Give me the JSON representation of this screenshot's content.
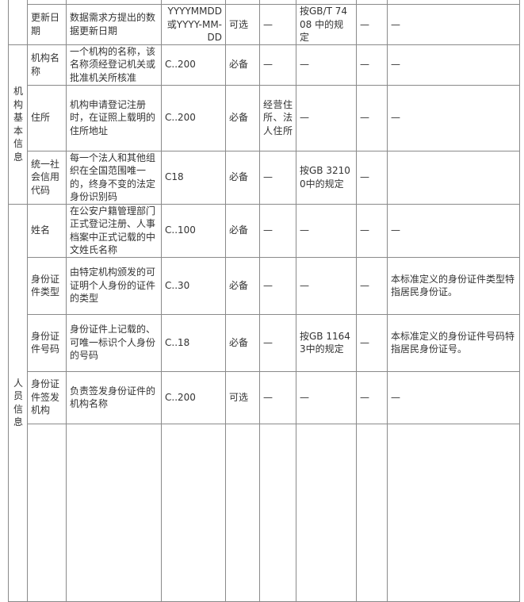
{
  "groups": {
    "org": "机构基本信息",
    "person": "人员信息"
  },
  "rows": [
    {
      "name": "更新日期",
      "desc": "数据需求方提出的数据更新日期",
      "format": "YYYYMMDD或YYYY-MM-DD",
      "req": "可选",
      "c5": "—",
      "c6": "按GB/T 7408 中的规定",
      "c7": "—",
      "c8": "—"
    },
    {
      "name": "机构名称",
      "desc": "一个机构的名称，该名称须经登记机关或批准机关所核准",
      "format": "C..200",
      "req": "必备",
      "c5": "—",
      "c6": "—",
      "c7": "—",
      "c8": "—"
    },
    {
      "name": "住所",
      "desc": "机构申请登记注册时，在证照上载明的住所地址",
      "format": "C..200",
      "req": "必备",
      "c5": "经营住所、法人住所",
      "c6": "—",
      "c7": "—",
      "c8": "—"
    },
    {
      "name": "统一社会信用代码",
      "desc": "每一个法人和其他组织在全国范围唯一的，终身不变的法定身份识别码",
      "format": "C18",
      "req": "必备",
      "c5": "—",
      "c6": "按GB 32100中的规定",
      "c7": "—",
      "c8": ""
    },
    {
      "name": "姓名",
      "desc": "在公安户籍管理部门正式登记注册、人事档案中正式记载的中文姓氏名称",
      "format": "C..100",
      "req": "必备",
      "c5": "—",
      "c6": "—",
      "c7": "—",
      "c8": "—"
    },
    {
      "name": "身份证件类型",
      "desc": "由特定机构颁发的可证明个人身份的证件的类型",
      "format": "C..30",
      "req": "必备",
      "c5": "—",
      "c6": "—",
      "c7": "—",
      "c8": "本标准定义的身份证件类型特指居民身份证。"
    },
    {
      "name": "身份证件号码",
      "desc": "身份证件上记载的、可唯一标识个人身份的号码",
      "format": "C..18",
      "req": "必备",
      "c5": "—",
      "c6": "按GB 11643中的规定",
      "c7": "—",
      "c8": "本标准定义的身份证件号码特指居民身份证号。"
    },
    {
      "name": "身份证件签发机构",
      "desc": "负责签发身份证件的机构名称",
      "format": "C..200",
      "req": "可选",
      "c5": "—",
      "c6": "—",
      "c7": "—",
      "c8": "—"
    }
  ]
}
